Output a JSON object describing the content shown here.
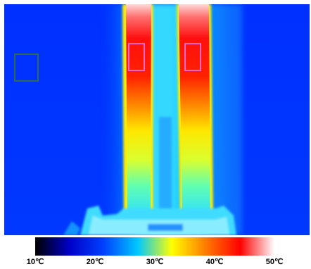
{
  "image": {
    "subject": "thermal-image-of-two-heated-strips",
    "roi_colors": {
      "reference": "#2e6b4a",
      "measurement": "#ff66cc"
    }
  },
  "colorbar": {
    "min_c": 10,
    "max_c": 50,
    "stops": [
      "#000000",
      "#0000c8",
      "#0040ff",
      "#00c8ff",
      "#ffff00",
      "#ff7a00",
      "#ff0000",
      "#ffffff"
    ],
    "ticks": [
      {
        "value": 10,
        "label": "10℃"
      },
      {
        "value": 20,
        "label": "20℃"
      },
      {
        "value": 30,
        "label": "30℃"
      },
      {
        "value": 40,
        "label": "40℃"
      },
      {
        "value": 50,
        "label": "50℃"
      }
    ]
  }
}
